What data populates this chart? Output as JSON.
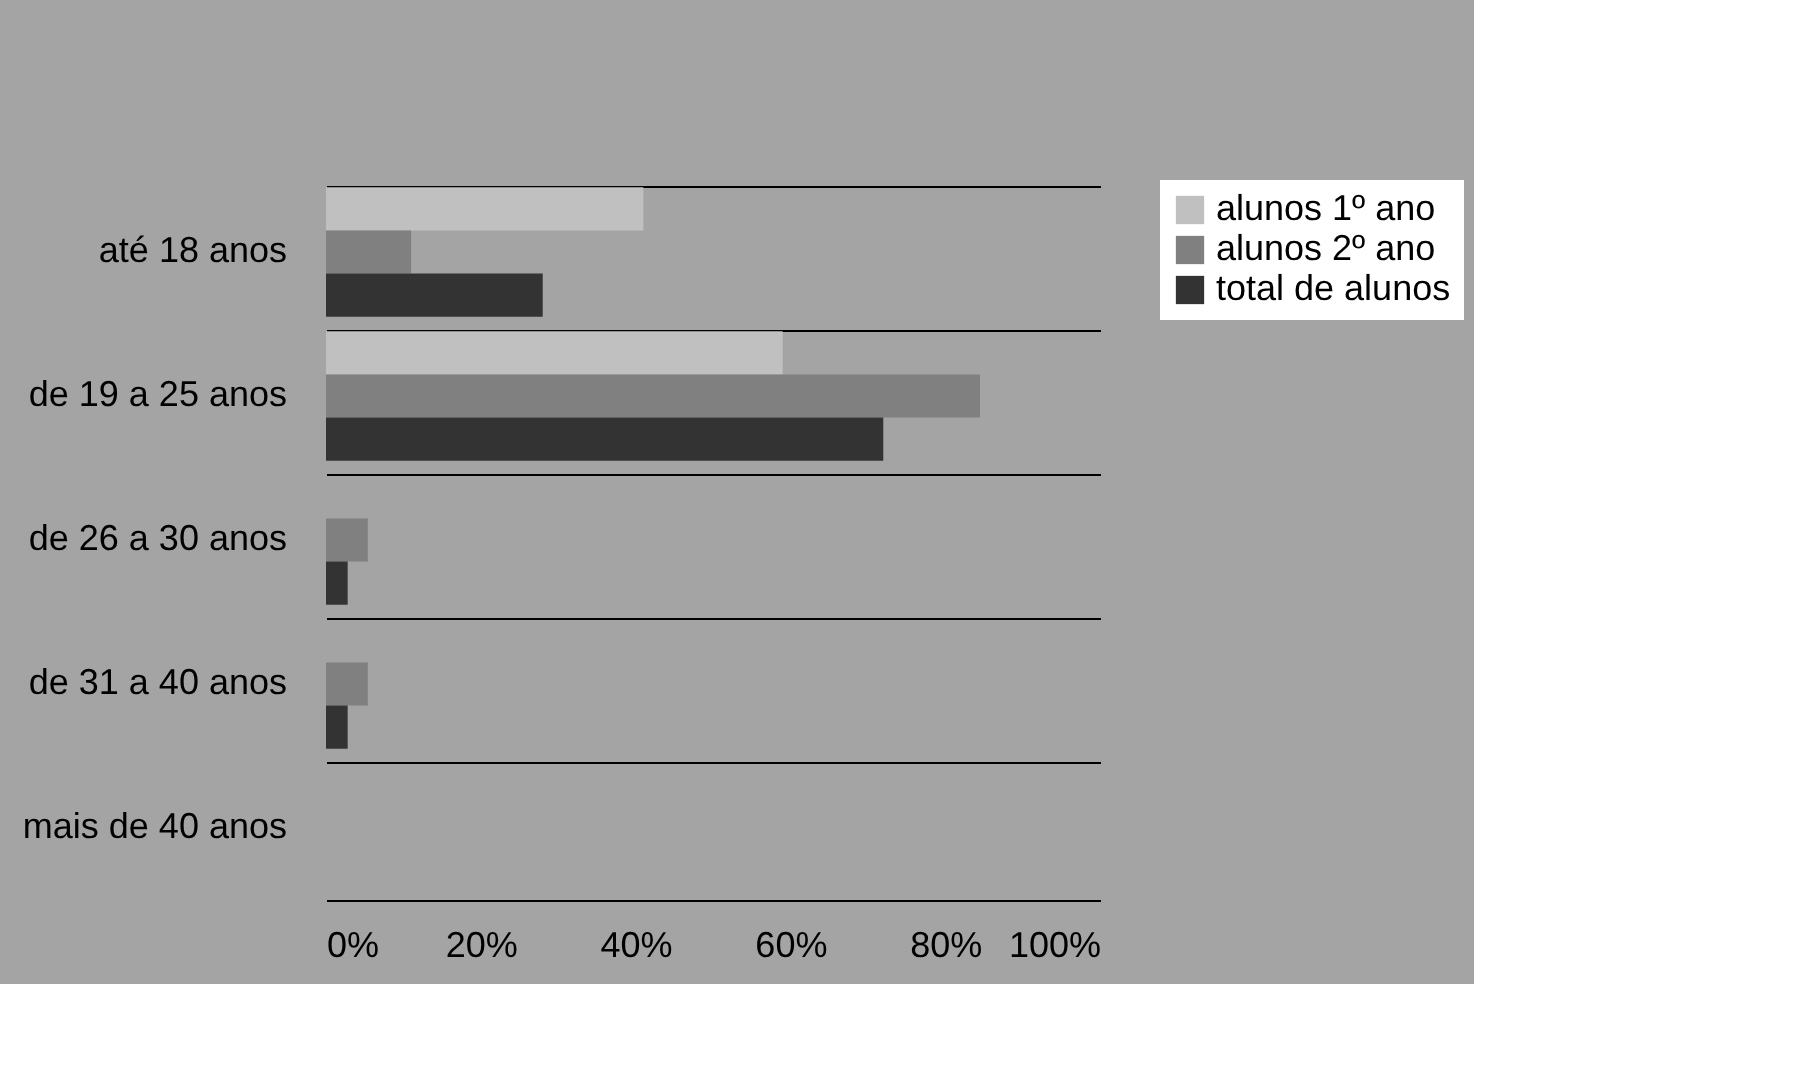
{
  "chart_data": {
    "type": "bar",
    "orientation": "horizontal",
    "categories": [
      "até 18 anos",
      "de 19 a 25 anos",
      "de 26 a 30 anos",
      "de 31 a 40 anos",
      "mais de 40 anos"
    ],
    "series": [
      {
        "name": "alunos 1º ano",
        "color": "#c0c0c0",
        "values": [
          41,
          59,
          0,
          0,
          0
        ]
      },
      {
        "name": "alunos 2º ano",
        "color": "#808080",
        "values": [
          11,
          84.5,
          5.4,
          5.4,
          0
        ]
      },
      {
        "name": "total de alunos",
        "color": "#333333",
        "values": [
          28,
          72,
          2.8,
          2.8,
          0
        ]
      }
    ],
    "xlim": [
      0,
      100
    ],
    "xticks": [
      {
        "value": 0,
        "label": "0%"
      },
      {
        "value": 20,
        "label": "20%"
      },
      {
        "value": 40,
        "label": "40%"
      },
      {
        "value": 60,
        "label": "60%"
      },
      {
        "value": 80,
        "label": "80%"
      },
      {
        "value": 100,
        "label": "100%"
      }
    ],
    "grid": "y",
    "legend": "right"
  }
}
